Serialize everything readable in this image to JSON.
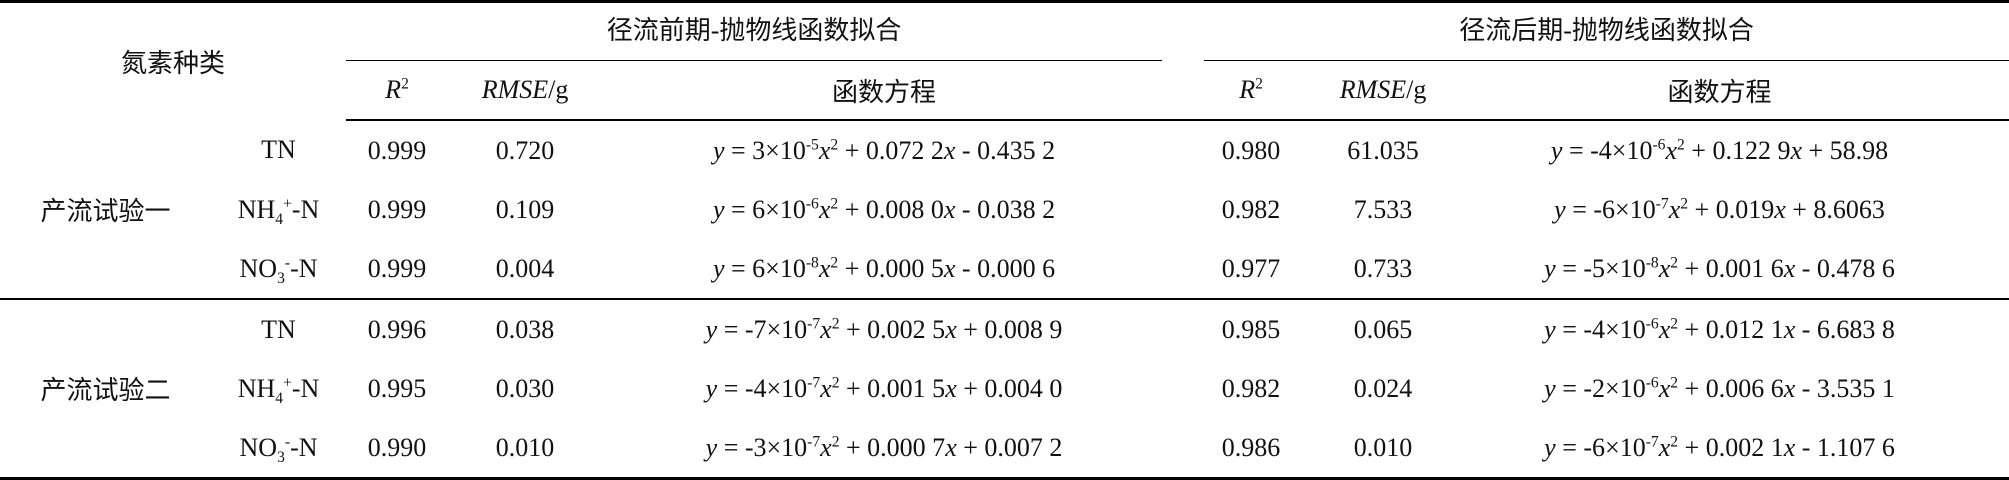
{
  "table": {
    "header": {
      "species": "氮素种类",
      "groups": [
        "径流前期-抛物线函数拟合",
        "径流后期-抛物线函数拟合"
      ],
      "columns": [
        [
          {
            "i": "R"
          },
          {
            "sup": "2"
          }
        ],
        [
          {
            "i": "RMSE"
          },
          "/g"
        ],
        "函数方程",
        [
          {
            "i": "R"
          },
          {
            "sup": "2"
          }
        ],
        [
          {
            "i": "RMSE"
          },
          "/g"
        ],
        "函数方程"
      ]
    },
    "rows": [
      {
        "group": "产流试验一",
        "items": [
          {
            "species": "TN",
            "cells": [
              "0.999",
              "0.720",
              [
                {
                  "i": "y"
                },
                " = 3×10",
                {
                  "sup": "-5"
                },
                {
                  "i": "x"
                },
                {
                  "sup": "2"
                },
                " + 0.072 2",
                {
                  "i": "x"
                },
                " - 0.435 2"
              ],
              "0.980",
              "61.035",
              [
                {
                  "i": "y"
                },
                " = -4×10",
                {
                  "sup": "-6"
                },
                {
                  "i": "x"
                },
                {
                  "sup": "2"
                },
                " + 0.122 9",
                {
                  "i": "x"
                },
                " + 58.98"
              ]
            ]
          },
          {
            "species": [
              "NH",
              {
                "sub": "4"
              },
              {
                "sup": "+"
              },
              "-N"
            ],
            "cells": [
              "0.999",
              "0.109",
              [
                {
                  "i": "y"
                },
                " = 6×10",
                {
                  "sup": "-6"
                },
                {
                  "i": "x"
                },
                {
                  "sup": "2"
                },
                " + 0.008 0",
                {
                  "i": "x"
                },
                " - 0.038 2"
              ],
              "0.982",
              "7.533",
              [
                {
                  "i": "y"
                },
                " = -6×10",
                {
                  "sup": "-7"
                },
                {
                  "i": "x"
                },
                {
                  "sup": "2"
                },
                " + 0.019",
                {
                  "i": "x"
                },
                " + 8.6063"
              ]
            ]
          },
          {
            "species": [
              "NO",
              {
                "sub": "3"
              },
              {
                "sup": "-"
              },
              "-N"
            ],
            "cells": [
              "0.999",
              "0.004",
              [
                {
                  "i": "y"
                },
                " = 6×10",
                {
                  "sup": "-8"
                },
                {
                  "i": "x"
                },
                {
                  "sup": "2"
                },
                " + 0.000 5",
                {
                  "i": "x"
                },
                " - 0.000 6"
              ],
              "0.977",
              "0.733",
              [
                {
                  "i": "y"
                },
                " = -5×10",
                {
                  "sup": "-8"
                },
                {
                  "i": "x"
                },
                {
                  "sup": "2"
                },
                " + 0.001 6",
                {
                  "i": "x"
                },
                " - 0.478 6"
              ]
            ]
          }
        ]
      },
      {
        "group": "产流试验二",
        "items": [
          {
            "species": "TN",
            "cells": [
              "0.996",
              "0.038",
              [
                {
                  "i": "y"
                },
                " = -7×10",
                {
                  "sup": "-7"
                },
                {
                  "i": "x"
                },
                {
                  "sup": "2"
                },
                " + 0.002 5",
                {
                  "i": "x"
                },
                " + 0.008 9"
              ],
              "0.985",
              "0.065",
              [
                {
                  "i": "y"
                },
                " = -4×10",
                {
                  "sup": "-6"
                },
                {
                  "i": "x"
                },
                {
                  "sup": "2"
                },
                " + 0.012 1",
                {
                  "i": "x"
                },
                " - 6.683 8"
              ]
            ]
          },
          {
            "species": [
              "NH",
              {
                "sub": "4"
              },
              {
                "sup": "+"
              },
              "-N"
            ],
            "cells": [
              "0.995",
              "0.030",
              [
                {
                  "i": "y"
                },
                " = -4×10",
                {
                  "sup": "-7"
                },
                {
                  "i": "x"
                },
                {
                  "sup": "2"
                },
                " + 0.001 5",
                {
                  "i": "x"
                },
                " + 0.004 0"
              ],
              "0.982",
              "0.024",
              [
                {
                  "i": "y"
                },
                " = -2×10",
                {
                  "sup": "-6"
                },
                {
                  "i": "x"
                },
                {
                  "sup": "2"
                },
                " + 0.006 6",
                {
                  "i": "x"
                },
                " - 3.535 1"
              ]
            ]
          },
          {
            "species": [
              "NO",
              {
                "sub": "3"
              },
              {
                "sup": "-"
              },
              "-N"
            ],
            "cells": [
              "0.990",
              "0.010",
              [
                {
                  "i": "y"
                },
                " = -3×10",
                {
                  "sup": "-7"
                },
                {
                  "i": "x"
                },
                {
                  "sup": "2"
                },
                " + 0.000 7",
                {
                  "i": "x"
                },
                " + 0.007 2"
              ],
              "0.986",
              "0.010",
              [
                {
                  "i": "y"
                },
                " = -6×10",
                {
                  "sup": "-7"
                },
                {
                  "i": "x"
                },
                {
                  "sup": "2"
                },
                " + 0.002 1",
                {
                  "i": "x"
                },
                " - 1.107 6"
              ]
            ]
          }
        ]
      }
    ]
  }
}
